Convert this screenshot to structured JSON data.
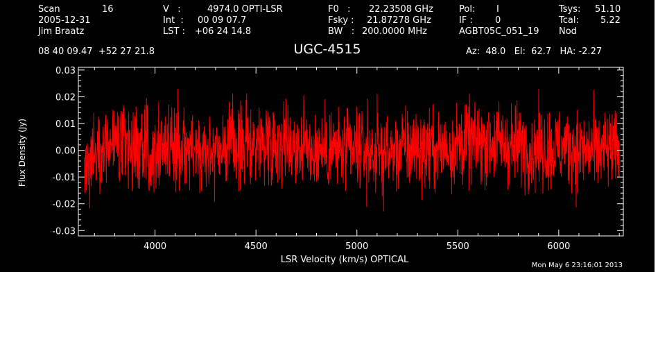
{
  "header": {
    "scan_label": "Scan",
    "scan_number": "16",
    "date": "2005-12-31",
    "observer": "Jim Braatz",
    "velocity_label": "V   :",
    "velocity_value": "4974.0 OPTI-LSR",
    "integration_label": "Int  :",
    "integration_value": "00 09 07.7",
    "lst_label": "LST :",
    "lst_value": "+06 24 14.8",
    "f0_label": "F0   :",
    "f0_value": "22.23508 GHz",
    "fsky_label": "Fsky :",
    "fsky_value": "21.87278 GHz",
    "bw_label": "BW   :",
    "bw_value": "200.0000 MHz",
    "pol_label": "Pol:",
    "pol_value": "I",
    "if_label": "IF :",
    "if_value": "0",
    "project_id": "AGBT05C_051_19",
    "tsys_label": "Tsys:",
    "tsys_value": "51.10",
    "tcal_label": "Tcal:",
    "tcal_value": "5.22",
    "proc": "Nod",
    "coordinates": "08 40 09.47  +52 27 21.8",
    "az_el_ha": "Az:  48.0   El:  62.7   HA: -2.27",
    "timestamp": "Mon May  6 23:16:01 2013"
  },
  "colors": {
    "background": "#000000",
    "axes": "#ffffff",
    "series": "#ff0000"
  },
  "chart_data": {
    "type": "line",
    "title": "UGC-4515",
    "xlabel": "LSR Velocity (km/s) OPTICAL",
    "ylabel": "Flux Density (Jy)",
    "xlim": [
      3620,
      6320
    ],
    "ylim": [
      -0.032,
      0.031
    ],
    "xticks": [
      4000,
      4500,
      5000,
      5500,
      6000
    ],
    "xtick_labels": [
      "4000",
      "4500",
      "5000",
      "5500",
      "6000"
    ],
    "yticks": [
      -0.03,
      -0.02,
      -0.01,
      0.0,
      0.01,
      0.02,
      0.03
    ],
    "ytick_labels": [
      "-0.03",
      "-0.02",
      "-0.01",
      "0.00",
      "0.01",
      "0.02",
      "0.03"
    ],
    "grid": false,
    "legend": "none",
    "series": [
      {
        "x": [
          3650,
          3660,
          3680,
          3700,
          3750,
          3800,
          3850,
          3900,
          3950,
          4000,
          4050,
          4100,
          4150,
          4200,
          4250,
          4300,
          4350,
          4400,
          4450,
          4500,
          4550,
          4600,
          4650,
          4700,
          4750,
          4800,
          4850,
          4900,
          4950,
          5000,
          5050,
          5100,
          5150,
          5200,
          5250,
          5300,
          5350,
          5400,
          5450,
          5500,
          5550,
          5600,
          5650,
          5700,
          5750,
          5800,
          5850,
          5900,
          5950,
          6000,
          6050,
          6100,
          6150,
          6200,
          6250,
          6300
        ],
        "y": [
          -0.012,
          -0.006,
          -0.003,
          0.0,
          0.002,
          0.002,
          0.001,
          0.001,
          0.0,
          0.001,
          0.002,
          0.002,
          0.001,
          0.0,
          0.0,
          0.001,
          0.001,
          0.002,
          0.002,
          0.003,
          0.004,
          0.004,
          0.003,
          0.002,
          0.001,
          0.0,
          0.0,
          0.0,
          -0.001,
          0.0,
          0.0,
          -0.001,
          -0.001,
          0.0,
          0.001,
          0.001,
          0.0,
          0.0,
          0.001,
          0.002,
          0.003,
          0.003,
          0.003,
          0.003,
          0.002,
          0.002,
          0.001,
          0.001,
          0.0,
          0.001,
          0.001,
          0.0,
          0.0,
          -0.001,
          0.0,
          0.0
        ],
        "noise_rms": 0.0075
      }
    ]
  }
}
